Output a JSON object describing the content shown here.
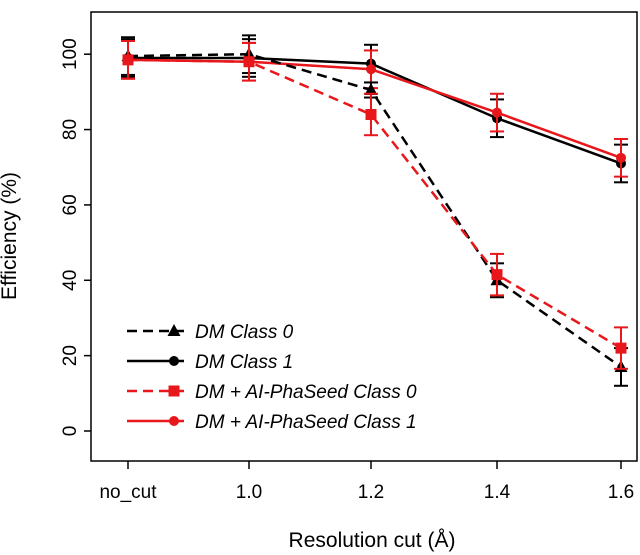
{
  "chart_data": {
    "type": "line",
    "xlabel": "Resolution cut (Å)",
    "ylabel": "Efficiency (%)",
    "categories": [
      "no_cut",
      "1.0",
      "1.2",
      "1.4",
      "1.6"
    ],
    "yticks": [
      "0",
      "20",
      "40",
      "60",
      "80",
      "100"
    ],
    "ylim": [
      -6,
      114
    ],
    "grid": false,
    "legend_position": "bottom-left",
    "series": [
      {
        "name": "DM Class 0",
        "color": "#000000",
        "line": "dashed",
        "marker": "triangle",
        "values": [
          99.5,
          100,
          90.5,
          40,
          17
        ],
        "errors": [
          5,
          5,
          2,
          4.5,
          5
        ]
      },
      {
        "name": "DM Class 1",
        "color": "#000000",
        "line": "solid",
        "marker": "circle",
        "values": [
          99,
          99,
          97.5,
          83,
          71
        ],
        "errors": [
          5,
          5,
          5,
          5,
          5
        ]
      },
      {
        "name": "DM + AI-PhaSeed Class 0",
        "color": "#e8171b",
        "line": "dashed",
        "marker": "square",
        "values": [
          98.5,
          98,
          84,
          41.5,
          22
        ],
        "errors": [
          5,
          5,
          5.5,
          5.5,
          5.5
        ]
      },
      {
        "name": "DM + AI-PhaSeed Class 1",
        "color": "#e8171b",
        "line": "solid",
        "marker": "circle",
        "values": [
          98.5,
          98,
          96,
          84.5,
          72.5
        ],
        "errors": [
          5,
          5,
          5,
          5,
          5
        ]
      }
    ]
  }
}
